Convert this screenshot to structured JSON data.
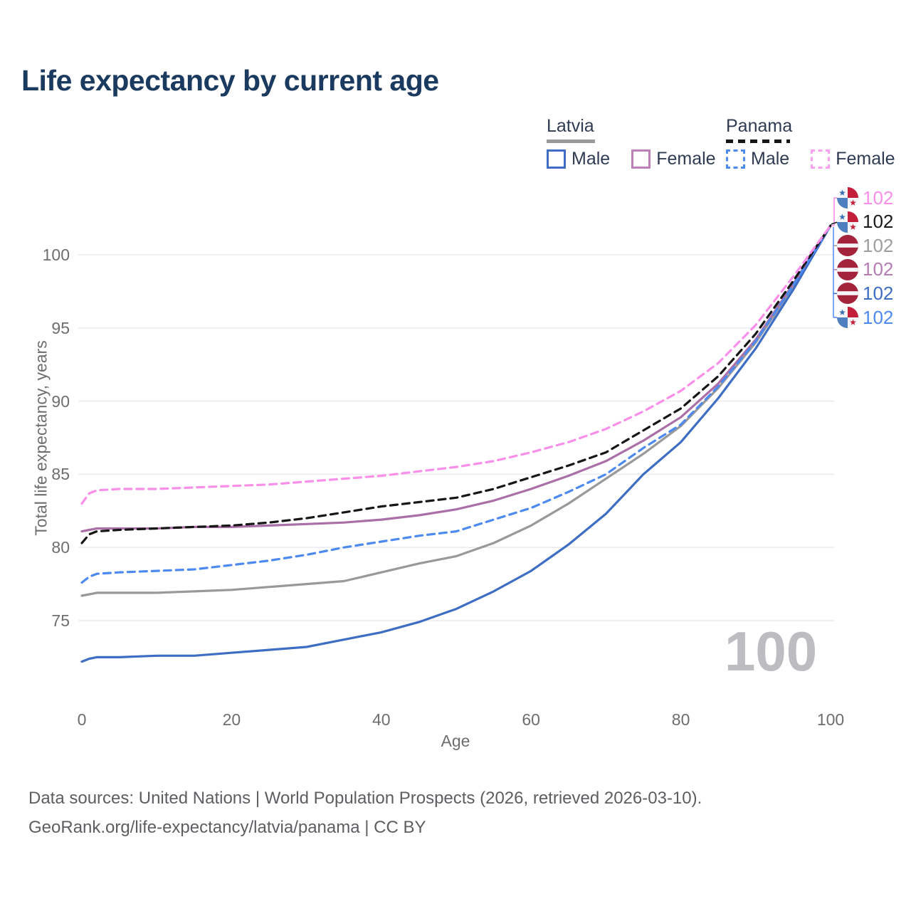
{
  "title": "Life expectancy by current age",
  "watermark": "100",
  "footer": {
    "line1": "Data sources: United Nations | World Population Prospects (2026, retrieved 2026-03-10).",
    "line2": "GeoRank.org/life-expectancy/latvia/panama | CC BY"
  },
  "colors": {
    "title": "#1b3a5f",
    "axis_text": "#6e6e6e",
    "grid": "#ebebf0",
    "legend_text": "#2f3b52",
    "watermark": "#bcbcc1",
    "footer_text": "#5d5e62",
    "connector_blue": "#5b8ff5",
    "latvia_flag_red": "#A4233C",
    "panama_flag_red": "#c41f3a",
    "panama_flag_blue": "#4e7fc1"
  },
  "legend": {
    "groups": [
      {
        "country": "Latvia",
        "line_style": "solid",
        "line_sample_color": "#9a9a9a",
        "items": [
          {
            "label": "Male",
            "color": "#3e6dc4",
            "dash": false
          },
          {
            "label": "Female",
            "color": "#bf80b8",
            "dash": false
          }
        ]
      },
      {
        "country": "Panama",
        "line_style": "dashed",
        "line_sample_color": "#161616",
        "items": [
          {
            "label": "Male",
            "color": "#4d8af0",
            "dash": true
          },
          {
            "label": "Female",
            "color": "#fda0ef",
            "dash": true
          }
        ]
      }
    ]
  },
  "end_labels": [
    {
      "series": "Panama Female",
      "flag": "panama-flag-icon",
      "value": "102",
      "color": "#f others"
    },
    {
      "series": "Panama",
      "flag": "panama-flag-icon",
      "value": "102",
      "color": "#1a1a1a"
    },
    {
      "series": "Latvia",
      "flag": "latvia-flag-icon",
      "value": "102",
      "color": "#9e9e9e"
    },
    {
      "series": "Latvia Female",
      "flag": "latvia-flag-icon",
      "value": "102",
      "color": "#b57cb5"
    },
    {
      "series": "Latvia Male",
      "flag": "latvia-flag-icon",
      "value": "102",
      "color": "#3e6dc4"
    },
    {
      "series": "Panama Male",
      "flag": "panama-flag-icon",
      "value": "102",
      "color": "#4d8af0"
    }
  ],
  "chart_data": {
    "type": "line",
    "title": "Life expectancy by current age",
    "xlabel": "Age",
    "ylabel": "Total life expectancy, years",
    "xlim": [
      0,
      100
    ],
    "ylim": [
      71,
      104
    ],
    "xticks": [
      0,
      20,
      40,
      60,
      80,
      100
    ],
    "yticks": [
      75,
      80,
      85,
      90,
      95,
      100
    ],
    "grid": true,
    "legend_position": "top-right",
    "frame_age": 100,
    "x": [
      0,
      1,
      2,
      5,
      10,
      15,
      20,
      25,
      30,
      35,
      40,
      45,
      50,
      55,
      60,
      65,
      70,
      75,
      80,
      85,
      90,
      95,
      100
    ],
    "series": [
      {
        "name": "Latvia",
        "country": "Latvia",
        "sex": "both",
        "color": "#999999",
        "dash": "solid",
        "values": [
          76.7,
          76.8,
          76.9,
          76.9,
          76.9,
          77.0,
          77.1,
          77.3,
          77.5,
          77.7,
          78.3,
          78.9,
          79.4,
          80.3,
          81.5,
          83.0,
          84.7,
          86.4,
          88.3,
          90.9,
          94.0,
          97.8,
          102
        ]
      },
      {
        "name": "Latvia Female",
        "country": "Latvia",
        "sex": "female",
        "color": "#ab6fa8",
        "dash": "solid",
        "values": [
          81.1,
          81.2,
          81.3,
          81.3,
          81.3,
          81.4,
          81.4,
          81.5,
          81.6,
          81.7,
          81.9,
          82.2,
          82.6,
          83.2,
          84.0,
          84.9,
          85.9,
          87.3,
          88.9,
          91.2,
          94.2,
          98.0,
          102
        ]
      },
      {
        "name": "Latvia Male",
        "country": "Latvia",
        "sex": "male",
        "color": "#3e6dc4",
        "dash": "solid",
        "values": [
          72.2,
          72.4,
          72.5,
          72.5,
          72.6,
          72.6,
          72.8,
          73.0,
          73.2,
          73.7,
          74.2,
          74.9,
          75.8,
          77.0,
          78.4,
          80.2,
          82.3,
          85.0,
          87.2,
          90.2,
          93.6,
          97.6,
          102
        ]
      },
      {
        "name": "Panama Male",
        "country": "Panama",
        "sex": "male",
        "color": "#4d8af0",
        "dash": "dashed",
        "values": [
          77.6,
          78.0,
          78.2,
          78.3,
          78.4,
          78.5,
          78.8,
          79.1,
          79.5,
          80.0,
          80.4,
          80.8,
          81.1,
          81.9,
          82.7,
          83.8,
          85.0,
          86.8,
          88.4,
          91.0,
          94.1,
          97.9,
          102
        ]
      },
      {
        "name": "Panama",
        "country": "Panama",
        "sex": "both",
        "color": "#161616",
        "dash": "dashed",
        "values": [
          80.3,
          80.9,
          81.1,
          81.2,
          81.3,
          81.4,
          81.5,
          81.7,
          82.0,
          82.4,
          82.8,
          83.1,
          83.4,
          84.0,
          84.8,
          85.6,
          86.5,
          88.0,
          89.5,
          91.7,
          94.6,
          98.2,
          102
        ]
      },
      {
        "name": "Panama Female",
        "country": "Panama",
        "sex": "female",
        "color": "#f98fe8",
        "dash": "dashed",
        "values": [
          83.0,
          83.7,
          83.9,
          84.0,
          84.0,
          84.1,
          84.2,
          84.3,
          84.5,
          84.7,
          84.9,
          85.2,
          85.5,
          85.9,
          86.5,
          87.2,
          88.1,
          89.3,
          90.7,
          92.6,
          95.2,
          98.5,
          102
        ]
      }
    ]
  }
}
